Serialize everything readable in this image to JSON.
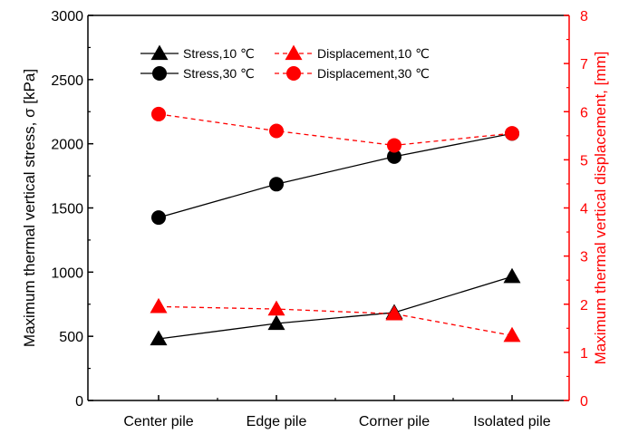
{
  "chart_data": {
    "type": "line",
    "categories": [
      "Center pile",
      "Edge pile",
      "Corner pile",
      "Isolated pile"
    ],
    "y_left": {
      "label": "Maximum thermal vertical stress, σ [kPa]",
      "lim": [
        0,
        3000
      ],
      "ticks": [
        0,
        500,
        1000,
        1500,
        2000,
        2500,
        3000
      ],
      "tick_labels": [
        "0",
        "500",
        "1000",
        "1500",
        "2000",
        "2500",
        "3000"
      ]
    },
    "y_right": {
      "label": "Maximum thermal vertical displacement, [mm]",
      "lim": [
        0,
        8
      ],
      "ticks": [
        0,
        1,
        2,
        3,
        4,
        5,
        6,
        7,
        8
      ],
      "tick_labels": [
        "0",
        "1",
        "2",
        "3",
        "4",
        "5",
        "6",
        "7",
        "8"
      ],
      "color": "#ff0000"
    },
    "series": [
      {
        "name": "Stress,10 ℃",
        "axis": "left",
        "marker": "triangle",
        "color": "#000000",
        "dash": false,
        "values": [
          480,
          600,
          685,
          965
        ]
      },
      {
        "name": "Stress,30 ℃",
        "axis": "left",
        "marker": "circle",
        "color": "#000000",
        "dash": false,
        "values": [
          1425,
          1685,
          1900,
          2080
        ]
      },
      {
        "name": "Displacement,10 ℃",
        "axis": "right",
        "marker": "triangle",
        "color": "#ff0000",
        "dash": true,
        "values": [
          1.95,
          1.9,
          1.8,
          1.35
        ]
      },
      {
        "name": "Displacement,30 ℃",
        "axis": "right",
        "marker": "circle",
        "color": "#ff0000",
        "dash": true,
        "values": [
          5.95,
          5.6,
          5.3,
          5.55
        ]
      }
    ],
    "legend_placement": "top",
    "grid": false
  }
}
